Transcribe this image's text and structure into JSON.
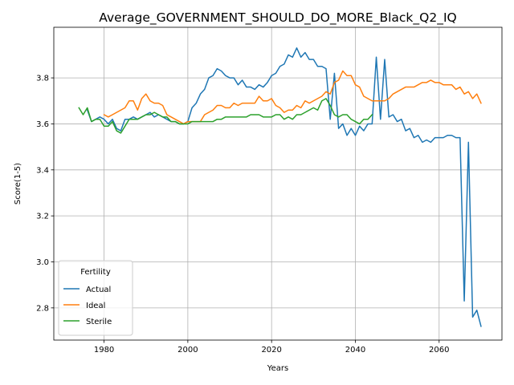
{
  "chart_data": {
    "type": "line",
    "title": "Average_GOVERNMENT_SHOULD_DO_MORE_Black_Q2_IQ",
    "xlabel": "Years",
    "ylabel": "Score(1-5)",
    "xlim": [
      1968,
      2075
    ],
    "ylim": [
      2.66,
      4.02
    ],
    "xticks": [
      1980,
      2000,
      2020,
      2040,
      2060
    ],
    "yticks": [
      2.8,
      3.0,
      3.2,
      3.4,
      3.6,
      3.8
    ],
    "xtick_labels": [
      "1980",
      "2000",
      "2020",
      "2040",
      "2060"
    ],
    "ytick_labels": [
      "2.8",
      "3.0",
      "3.2",
      "3.4",
      "3.6",
      "3.8"
    ],
    "grid": true,
    "legend": {
      "title": "Fertility",
      "placement": "lower-left"
    },
    "series": [
      {
        "name": "Actual",
        "color": "#1f77b4",
        "x": [
          1976,
          1977,
          1978,
          1979,
          1980,
          1981,
          1982,
          1983,
          1984,
          1985,
          1986,
          1987,
          1988,
          1989,
          1990,
          1991,
          1992,
          1993,
          1994,
          1995,
          1996,
          1997,
          1998,
          1999,
          2000,
          2001,
          2002,
          2003,
          2004,
          2005,
          2006,
          2007,
          2008,
          2009,
          2010,
          2011,
          2012,
          2013,
          2014,
          2015,
          2016,
          2017,
          2018,
          2019,
          2020,
          2021,
          2022,
          2023,
          2024,
          2025,
          2026,
          2027,
          2028,
          2029,
          2030,
          2031,
          2032,
          2033,
          2034,
          2035,
          2036,
          2037,
          2038,
          2039,
          2040,
          2041,
          2042,
          2043,
          2044,
          2045,
          2046,
          2047,
          2048,
          2049,
          2050,
          2051,
          2052,
          2053,
          2054,
          2055,
          2056,
          2057,
          2058,
          2059,
          2060,
          2061,
          2062,
          2063,
          2064,
          2065,
          2066,
          2067,
          2068,
          2069,
          2070
        ],
        "values": [
          3.66,
          3.61,
          3.62,
          3.63,
          3.62,
          3.6,
          3.62,
          3.58,
          3.57,
          3.62,
          3.62,
          3.63,
          3.62,
          3.63,
          3.64,
          3.65,
          3.63,
          3.64,
          3.63,
          3.62,
          3.61,
          3.61,
          3.6,
          3.6,
          3.61,
          3.67,
          3.69,
          3.73,
          3.75,
          3.8,
          3.81,
          3.84,
          3.83,
          3.81,
          3.8,
          3.8,
          3.77,
          3.79,
          3.76,
          3.76,
          3.75,
          3.77,
          3.76,
          3.78,
          3.81,
          3.82,
          3.85,
          3.86,
          3.9,
          3.89,
          3.93,
          3.89,
          3.91,
          3.88,
          3.88,
          3.85,
          3.85,
          3.84,
          3.62,
          3.82,
          3.58,
          3.6,
          3.55,
          3.58,
          3.55,
          3.59,
          3.57,
          3.6,
          3.6,
          3.89,
          3.62,
          3.88,
          3.63,
          3.64,
          3.61,
          3.62,
          3.57,
          3.58,
          3.54,
          3.55,
          3.52,
          3.53,
          3.52,
          3.54,
          3.54,
          3.54,
          3.55,
          3.55,
          3.54,
          3.54,
          2.83,
          3.52,
          2.76,
          2.79,
          2.72
        ]
      },
      {
        "name": "Ideal",
        "color": "#ff7f0e",
        "x": [
          1980,
          1981,
          1982,
          1983,
          1984,
          1985,
          1986,
          1987,
          1988,
          1989,
          1990,
          1991,
          1992,
          1993,
          1994,
          1995,
          1996,
          1997,
          1998,
          1999,
          2000,
          2001,
          2002,
          2003,
          2004,
          2005,
          2006,
          2007,
          2008,
          2009,
          2010,
          2011,
          2012,
          2013,
          2014,
          2015,
          2016,
          2017,
          2018,
          2019,
          2020,
          2021,
          2022,
          2023,
          2024,
          2025,
          2026,
          2027,
          2028,
          2029,
          2030,
          2031,
          2032,
          2033,
          2034,
          2035,
          2036,
          2037,
          2038,
          2039,
          2040,
          2041,
          2042,
          2043,
          2044,
          2045,
          2046,
          2047,
          2048,
          2049,
          2050,
          2051,
          2052,
          2053,
          2054,
          2055,
          2056,
          2057,
          2058,
          2059,
          2060,
          2061,
          2062,
          2063,
          2064,
          2065,
          2066,
          2067,
          2068,
          2069,
          2070
        ],
        "values": [
          3.64,
          3.63,
          3.64,
          3.65,
          3.66,
          3.67,
          3.7,
          3.7,
          3.66,
          3.71,
          3.73,
          3.7,
          3.69,
          3.69,
          3.68,
          3.64,
          3.63,
          3.62,
          3.61,
          3.6,
          3.61,
          3.61,
          3.61,
          3.61,
          3.64,
          3.65,
          3.66,
          3.68,
          3.68,
          3.67,
          3.67,
          3.69,
          3.68,
          3.69,
          3.69,
          3.69,
          3.69,
          3.72,
          3.7,
          3.7,
          3.71,
          3.68,
          3.67,
          3.65,
          3.66,
          3.66,
          3.68,
          3.67,
          3.7,
          3.69,
          3.7,
          3.71,
          3.72,
          3.74,
          3.73,
          3.78,
          3.79,
          3.83,
          3.81,
          3.81,
          3.77,
          3.76,
          3.72,
          3.71,
          3.7,
          3.7,
          3.7,
          3.7,
          3.71,
          3.73,
          3.74,
          3.75,
          3.76,
          3.76,
          3.76,
          3.77,
          3.78,
          3.78,
          3.79,
          3.78,
          3.78,
          3.77,
          3.77,
          3.77,
          3.75,
          3.76,
          3.73,
          3.74,
          3.71,
          3.73,
          3.69
        ]
      },
      {
        "name": "Sterile",
        "color": "#2ca02c",
        "x": [
          1974,
          1975,
          1976,
          1977,
          1978,
          1979,
          1980,
          1981,
          1982,
          1983,
          1984,
          1985,
          1986,
          1987,
          1988,
          1989,
          1990,
          1991,
          1992,
          1993,
          1994,
          1995,
          1996,
          1997,
          1998,
          1999,
          2000,
          2001,
          2002,
          2003,
          2004,
          2005,
          2006,
          2007,
          2008,
          2009,
          2010,
          2011,
          2012,
          2013,
          2014,
          2015,
          2016,
          2017,
          2018,
          2019,
          2020,
          2021,
          2022,
          2023,
          2024,
          2025,
          2026,
          2027,
          2028,
          2029,
          2030,
          2031,
          2032,
          2033,
          2034,
          2035,
          2036,
          2037,
          2038,
          2039,
          2040,
          2041,
          2042,
          2043,
          2044
        ],
        "values": [
          3.67,
          3.64,
          3.67,
          3.61,
          3.62,
          3.62,
          3.59,
          3.59,
          3.61,
          3.57,
          3.56,
          3.59,
          3.62,
          3.62,
          3.62,
          3.63,
          3.64,
          3.64,
          3.65,
          3.64,
          3.63,
          3.63,
          3.61,
          3.61,
          3.6,
          3.6,
          3.6,
          3.61,
          3.61,
          3.61,
          3.61,
          3.61,
          3.61,
          3.62,
          3.62,
          3.63,
          3.63,
          3.63,
          3.63,
          3.63,
          3.63,
          3.64,
          3.64,
          3.64,
          3.63,
          3.63,
          3.63,
          3.64,
          3.64,
          3.62,
          3.63,
          3.62,
          3.64,
          3.64,
          3.65,
          3.66,
          3.67,
          3.66,
          3.7,
          3.71,
          3.68,
          3.64,
          3.63,
          3.64,
          3.64,
          3.62,
          3.61,
          3.6,
          3.62,
          3.62,
          3.64
        ]
      }
    ]
  }
}
